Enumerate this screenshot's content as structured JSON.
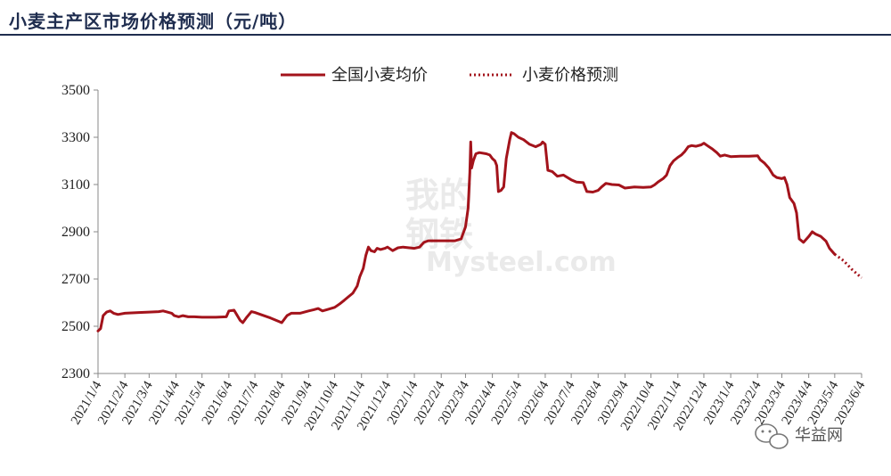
{
  "header": {
    "title": "小麦主产区市场价格预测（元/吨）"
  },
  "watermark": {
    "site": "Mysteel.com",
    "chars": [
      "我的",
      "钢铁"
    ]
  },
  "brand": {
    "label": "华益网",
    "icon": "wechat-icon"
  },
  "colors": {
    "series": "#a3131b",
    "axis": "#888888",
    "title": "#1f2d4f"
  },
  "chart_data": {
    "type": "line",
    "title": "小麦主产区市场价格预测（元/吨）",
    "xlabel": "",
    "ylabel": "",
    "ylim": [
      2300,
      3500
    ],
    "yticks": [
      2300,
      2500,
      2700,
      2900,
      3100,
      3300,
      3500
    ],
    "xlim": [
      "2021-01-04",
      "2023-06-04"
    ],
    "xtick_labels": [
      "2021/1/4",
      "2021/2/4",
      "2021/3/4",
      "2021/4/4",
      "2021/5/4",
      "2021/6/4",
      "2021/7/4",
      "2021/8/4",
      "2021/9/4",
      "2021/10/4",
      "2021/11/4",
      "2021/12/4",
      "2022/1/4",
      "2022/2/4",
      "2022/3/4",
      "2022/4/4",
      "2022/5/4",
      "2022/6/4",
      "2022/7/4",
      "2022/8/4",
      "2022/9/4",
      "2022/10/4",
      "2022/11/4",
      "2022/12/4",
      "2023/1/4",
      "2023/2/4",
      "2023/3/4",
      "2023/4/4",
      "2023/5/4",
      "2023/6/4"
    ],
    "grid": false,
    "legend_position": "top-center",
    "series": [
      {
        "name": "全国小麦均价",
        "style": "solid",
        "points": [
          [
            "2021-01-04",
            2480
          ],
          [
            "2021-01-07",
            2490
          ],
          [
            "2021-01-10",
            2545
          ],
          [
            "2021-01-14",
            2560
          ],
          [
            "2021-01-18",
            2565
          ],
          [
            "2021-01-22",
            2555
          ],
          [
            "2021-01-27",
            2550
          ],
          [
            "2021-02-04",
            2555
          ],
          [
            "2021-02-20",
            2558
          ],
          [
            "2021-03-04",
            2560
          ],
          [
            "2021-03-15",
            2562
          ],
          [
            "2021-03-20",
            2565
          ],
          [
            "2021-03-25",
            2560
          ],
          [
            "2021-03-30",
            2555
          ],
          [
            "2021-04-02",
            2545
          ],
          [
            "2021-04-07",
            2540
          ],
          [
            "2021-04-12",
            2545
          ],
          [
            "2021-04-18",
            2540
          ],
          [
            "2021-04-25",
            2540
          ],
          [
            "2021-05-04",
            2538
          ],
          [
            "2021-05-20",
            2538
          ],
          [
            "2021-06-01",
            2540
          ],
          [
            "2021-06-04",
            2565
          ],
          [
            "2021-06-10",
            2568
          ],
          [
            "2021-06-13",
            2550
          ],
          [
            "2021-06-17",
            2525
          ],
          [
            "2021-06-20",
            2515
          ],
          [
            "2021-06-24",
            2535
          ],
          [
            "2021-06-30",
            2562
          ],
          [
            "2021-07-04",
            2558
          ],
          [
            "2021-07-12",
            2548
          ],
          [
            "2021-07-22",
            2535
          ],
          [
            "2021-08-01",
            2520
          ],
          [
            "2021-08-04",
            2515
          ],
          [
            "2021-08-10",
            2545
          ],
          [
            "2021-08-15",
            2555
          ],
          [
            "2021-08-25",
            2555
          ],
          [
            "2021-09-04",
            2565
          ],
          [
            "2021-09-10",
            2570
          ],
          [
            "2021-09-15",
            2575
          ],
          [
            "2021-09-20",
            2565
          ],
          [
            "2021-09-25",
            2570
          ],
          [
            "2021-10-04",
            2580
          ],
          [
            "2021-10-10",
            2595
          ],
          [
            "2021-10-15",
            2610
          ],
          [
            "2021-10-20",
            2625
          ],
          [
            "2021-10-25",
            2640
          ],
          [
            "2021-10-30",
            2670
          ],
          [
            "2021-11-02",
            2710
          ],
          [
            "2021-11-06",
            2745
          ],
          [
            "2021-11-09",
            2800
          ],
          [
            "2021-11-12",
            2835
          ],
          [
            "2021-11-15",
            2820
          ],
          [
            "2021-11-19",
            2815
          ],
          [
            "2021-11-22",
            2830
          ],
          [
            "2021-11-26",
            2825
          ],
          [
            "2021-12-01",
            2830
          ],
          [
            "2021-12-04",
            2835
          ],
          [
            "2021-12-10",
            2820
          ],
          [
            "2021-12-16",
            2832
          ],
          [
            "2021-12-22",
            2835
          ],
          [
            "2022-01-04",
            2830
          ],
          [
            "2022-01-10",
            2835
          ],
          [
            "2022-01-15",
            2855
          ],
          [
            "2022-01-20",
            2862
          ],
          [
            "2022-02-04",
            2862
          ],
          [
            "2022-02-20",
            2862
          ],
          [
            "2022-02-27",
            2870
          ],
          [
            "2022-03-01",
            2890
          ],
          [
            "2022-03-04",
            2920
          ],
          [
            "2022-03-07",
            3000
          ],
          [
            "2022-03-09",
            3150
          ],
          [
            "2022-03-10",
            3280
          ],
          [
            "2022-03-11",
            3170
          ],
          [
            "2022-03-13",
            3200
          ],
          [
            "2022-03-16",
            3230
          ],
          [
            "2022-03-20",
            3235
          ],
          [
            "2022-03-28",
            3230
          ],
          [
            "2022-04-01",
            3225
          ],
          [
            "2022-04-04",
            3210
          ],
          [
            "2022-04-07",
            3200
          ],
          [
            "2022-04-09",
            3180
          ],
          [
            "2022-04-11",
            3070
          ],
          [
            "2022-04-14",
            3075
          ],
          [
            "2022-04-17",
            3090
          ],
          [
            "2022-04-20",
            3210
          ],
          [
            "2022-04-24",
            3290
          ],
          [
            "2022-04-26",
            3320
          ],
          [
            "2022-04-29",
            3315
          ],
          [
            "2022-05-04",
            3300
          ],
          [
            "2022-05-10",
            3290
          ],
          [
            "2022-05-17",
            3270
          ],
          [
            "2022-05-24",
            3260
          ],
          [
            "2022-05-30",
            3270
          ],
          [
            "2022-06-01",
            3280
          ],
          [
            "2022-06-04",
            3270
          ],
          [
            "2022-06-07",
            3160
          ],
          [
            "2022-06-12",
            3155
          ],
          [
            "2022-06-18",
            3135
          ],
          [
            "2022-06-25",
            3140
          ],
          [
            "2022-07-04",
            3120
          ],
          [
            "2022-07-10",
            3110
          ],
          [
            "2022-07-18",
            3108
          ],
          [
            "2022-07-22",
            3070
          ],
          [
            "2022-07-29",
            3068
          ],
          [
            "2022-08-04",
            3075
          ],
          [
            "2022-08-08",
            3090
          ],
          [
            "2022-08-13",
            3105
          ],
          [
            "2022-08-20",
            3100
          ],
          [
            "2022-08-28",
            3098
          ],
          [
            "2022-09-04",
            3085
          ],
          [
            "2022-09-15",
            3090
          ],
          [
            "2022-09-25",
            3088
          ],
          [
            "2022-10-04",
            3090
          ],
          [
            "2022-10-08",
            3098
          ],
          [
            "2022-10-12",
            3110
          ],
          [
            "2022-10-18",
            3125
          ],
          [
            "2022-10-22",
            3140
          ],
          [
            "2022-10-26",
            3180
          ],
          [
            "2022-10-30",
            3200
          ],
          [
            "2022-11-04",
            3215
          ],
          [
            "2022-11-08",
            3225
          ],
          [
            "2022-11-12",
            3240
          ],
          [
            "2022-11-16",
            3260
          ],
          [
            "2022-11-20",
            3265
          ],
          [
            "2022-11-25",
            3262
          ],
          [
            "2022-12-01",
            3268
          ],
          [
            "2022-12-04",
            3275
          ],
          [
            "2022-12-08",
            3265
          ],
          [
            "2022-12-14",
            3250
          ],
          [
            "2022-12-19",
            3235
          ],
          [
            "2022-12-23",
            3220
          ],
          [
            "2022-12-28",
            3225
          ],
          [
            "2023-01-04",
            3218
          ],
          [
            "2023-01-15",
            3220
          ],
          [
            "2023-01-25",
            3220
          ],
          [
            "2023-02-04",
            3222
          ],
          [
            "2023-02-07",
            3205
          ],
          [
            "2023-02-12",
            3190
          ],
          [
            "2023-02-17",
            3170
          ],
          [
            "2023-02-22",
            3140
          ],
          [
            "2023-02-26",
            3130
          ],
          [
            "2023-03-04",
            3125
          ],
          [
            "2023-03-07",
            3130
          ],
          [
            "2023-03-10",
            3100
          ],
          [
            "2023-03-13",
            3045
          ],
          [
            "2023-03-18",
            3020
          ],
          [
            "2023-03-21",
            2980
          ],
          [
            "2023-03-24",
            2870
          ],
          [
            "2023-03-29",
            2855
          ],
          [
            "2023-04-04",
            2880
          ],
          [
            "2023-04-08",
            2900
          ],
          [
            "2023-04-12",
            2890
          ],
          [
            "2023-04-18",
            2880
          ],
          [
            "2023-04-24",
            2860
          ],
          [
            "2023-04-28",
            2830
          ],
          [
            "2023-05-04",
            2805
          ]
        ]
      },
      {
        "name": "小麦价格预测",
        "style": "dotted",
        "points": [
          [
            "2023-05-04",
            2805
          ],
          [
            "2023-05-14",
            2778
          ],
          [
            "2023-05-24",
            2740
          ],
          [
            "2023-06-04",
            2705
          ]
        ]
      }
    ]
  }
}
